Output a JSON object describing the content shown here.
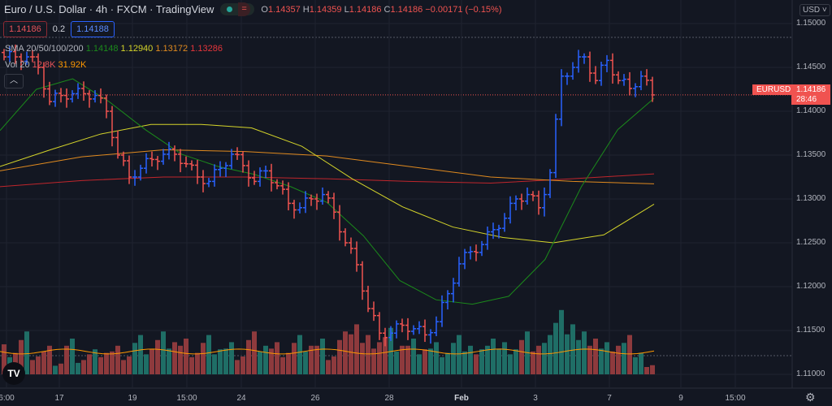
{
  "header": {
    "title": "Euro / U.S. Dollar · 4h · FXCM · TradingView",
    "ohlc": {
      "o_label": "O",
      "o": "1.14357",
      "h_label": "H",
      "h": "1.14359",
      "l_label": "L",
      "l": "1.14186",
      "c_label": "C",
      "c": "1.14186",
      "change": "−0.00171 (−0.15%)"
    },
    "sell_price": "1.14186",
    "spread": "0.2",
    "buy_price": "1.14188",
    "sma_label": "SMA 20/50/100/200",
    "sma_values": [
      "1.14148",
      "1.12940",
      "1.13172",
      "1.13286"
    ],
    "vol_label": "Vol 20",
    "vol_values": [
      "12.8K",
      "31.92K"
    ],
    "collapse_icon": "chevron-up-icon",
    "market_status_icon": "market-open-dot-icon"
  },
  "price_axis": {
    "currency": "USD",
    "ticks": [
      "1.15000",
      "1.14500",
      "1.14000",
      "1.13500",
      "1.13000",
      "1.12500",
      "1.12000",
      "1.11500",
      "1.11000"
    ]
  },
  "price_tag": {
    "symbol": "EURUSD",
    "price": "1.14186",
    "countdown": "28:46"
  },
  "time_axis": {
    "labels": [
      "6:00",
      "17",
      "19",
      "15:00",
      "24",
      "26",
      "28",
      "Feb",
      "3",
      "7",
      "9",
      "15:00"
    ]
  },
  "colors": {
    "up": "#2962ff",
    "down": "#f05350",
    "vol_up": "#1f6e66",
    "vol_down": "#8e3a3d",
    "sma20": "#1b8a1b",
    "sma50": "#d4d42a",
    "sma100": "#e08a1f",
    "sma200": "#c0262c",
    "vol_ma": "#ff9800",
    "bg": "#131722"
  },
  "chart_data": {
    "type": "ohlc",
    "symbol": "EURUSD",
    "interval": "4h",
    "ylim": [
      1.1,
      1.15
    ],
    "closes": [
      1.1462,
      1.1462,
      1.1462,
      1.145,
      1.1411,
      1.1418,
      1.142,
      1.142,
      1.1418,
      1.14,
      1.135,
      1.1325,
      1.1335,
      1.1345,
      1.1351,
      1.1351,
      1.134,
      1.1325,
      1.132,
      1.1335,
      1.1351,
      1.1338,
      1.132,
      1.1332,
      1.1315,
      1.1295,
      1.129,
      1.13,
      1.1305,
      1.1285,
      1.125,
      1.1225,
      1.1175,
      1.1147,
      1.1147,
      1.1156,
      1.1152,
      1.1145,
      1.116,
      1.1192,
      1.1226,
      1.124,
      1.1248,
      1.1265,
      1.1278,
      1.13,
      1.1305,
      1.129,
      1.133,
      1.144,
      1.145,
      1.1462,
      1.1435,
      1.1458,
      1.1435,
      1.1426,
      1.144,
      1.14186
    ],
    "volumes_k": [
      42,
      30,
      60,
      25,
      40,
      15,
      50,
      20,
      35,
      30,
      40,
      25,
      55,
      35,
      60,
      45,
      50,
      30,
      55,
      35,
      45,
      25,
      60,
      40,
      45,
      30,
      55,
      40,
      50,
      25,
      60,
      70,
      55,
      45,
      65,
      40,
      50,
      35,
      45,
      30,
      55,
      40,
      35,
      50,
      45,
      35,
      60,
      40,
      55,
      90,
      70,
      60,
      50,
      45,
      40,
      55,
      30,
      12.8
    ],
    "vol_ma_k": 31.92,
    "sma": {
      "sma20": [
        1.1378,
        1.1425,
        1.1437,
        1.1411,
        1.1379,
        1.1351,
        1.1337,
        1.1328,
        1.1314,
        1.1296,
        1.1258,
        1.1207,
        1.1185,
        1.118,
        1.1189,
        1.1231,
        1.1314,
        1.1379,
        1.14148
      ],
      "sma50": [
        1.1337,
        1.1356,
        1.1374,
        1.1385,
        1.1385,
        1.1381,
        1.136,
        1.1323,
        1.1291,
        1.1268,
        1.1256,
        1.125,
        1.1259,
        1.1294
      ],
      "sma100": [
        1.1332,
        1.1348,
        1.1356,
        1.1354,
        1.1349,
        1.1337,
        1.1325,
        1.132,
        1.13172
      ],
      "sma200": [
        1.1314,
        1.1321,
        1.1325,
        1.1325,
        1.1323,
        1.132,
        1.1318,
        1.1323,
        1.13286
      ]
    }
  }
}
